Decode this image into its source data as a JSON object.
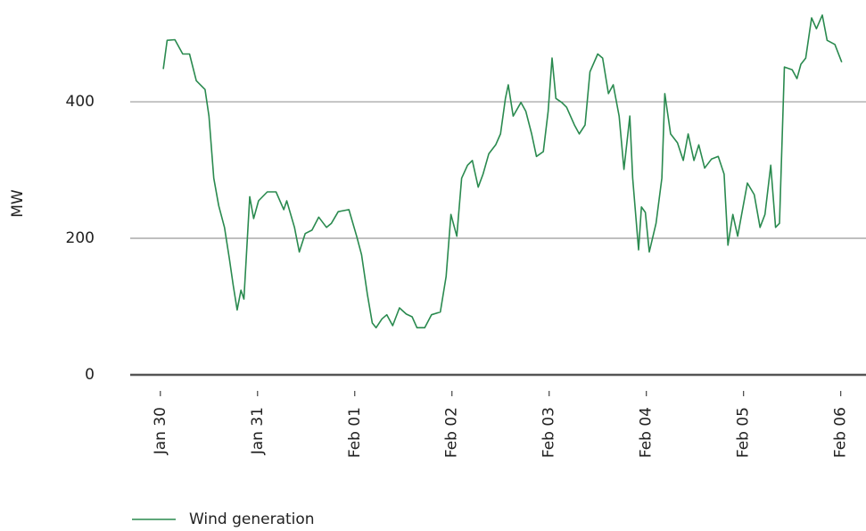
{
  "chart_data": {
    "type": "line",
    "y_label": "MW",
    "x": [
      0.03,
      0.07,
      0.15,
      0.23,
      0.3,
      0.37,
      0.46,
      0.5,
      0.55,
      0.6,
      0.66,
      0.71,
      0.75,
      0.79,
      0.83,
      0.86,
      0.92,
      0.96,
      1.01,
      1.1,
      1.19,
      1.27,
      1.3,
      1.38,
      1.43,
      1.49,
      1.56,
      1.63,
      1.71,
      1.76,
      1.83,
      1.94,
      2.02,
      2.07,
      2.13,
      2.18,
      2.22,
      2.28,
      2.33,
      2.39,
      2.46,
      2.53,
      2.59,
      2.64,
      2.72,
      2.79,
      2.88,
      2.94,
      2.99,
      3.05,
      3.1,
      3.16,
      3.21,
      3.27,
      3.32,
      3.38,
      3.45,
      3.5,
      3.55,
      3.58,
      3.63,
      3.71,
      3.76,
      3.82,
      3.87,
      3.94,
      3.99,
      4.03,
      4.07,
      4.13,
      4.18,
      4.26,
      4.31,
      4.37,
      4.42,
      4.5,
      4.55,
      4.61,
      4.66,
      4.72,
      4.77,
      4.83,
      4.86,
      4.92,
      4.95,
      4.99,
      5.03,
      5.1,
      5.16,
      5.19,
      5.25,
      5.32,
      5.38,
      5.43,
      5.49,
      5.54,
      5.6,
      5.67,
      5.74,
      5.8,
      5.84,
      5.89,
      5.94,
      6.04,
      6.11,
      6.17,
      6.22,
      6.28,
      6.33,
      6.37,
      6.42,
      6.5,
      6.55,
      6.59,
      6.64,
      6.7,
      6.75,
      6.81,
      6.86,
      6.94,
      7.01
    ],
    "series": [
      {
        "name": "Wind generation",
        "color": "#2a8a4f",
        "values": [
          448,
          490,
          491,
          470,
          470,
          431,
          418,
          379,
          288,
          248,
          216,
          170,
          131,
          95,
          124,
          111,
          261,
          229,
          255,
          268,
          268,
          242,
          255,
          216,
          180,
          207,
          212,
          231,
          216,
          222,
          239,
          242,
          203,
          176,
          118,
          76,
          69,
          82,
          88,
          72,
          98,
          89,
          85,
          69,
          69,
          88,
          92,
          144,
          235,
          203,
          288,
          307,
          314,
          275,
          294,
          324,
          337,
          353,
          405,
          425,
          379,
          399,
          386,
          353,
          320,
          327,
          386,
          464,
          405,
          399,
          392,
          366,
          353,
          366,
          444,
          470,
          464,
          412,
          425,
          379,
          301,
          379,
          288,
          183,
          246,
          238,
          180,
          222,
          288,
          412,
          353,
          340,
          314,
          353,
          314,
          337,
          303,
          316,
          320,
          294,
          190,
          235,
          203,
          281,
          264,
          216,
          235,
          307,
          216,
          222,
          451,
          447,
          434,
          455,
          464,
          523,
          507,
          527,
          490,
          484,
          458
        ]
      }
    ],
    "xlim": [
      -0.31,
      7.26
    ],
    "xticks": [
      {
        "value": 0,
        "label": "Jan 30"
      },
      {
        "value": 1,
        "label": "Jan 31"
      },
      {
        "value": 2,
        "label": "Feb 01"
      },
      {
        "value": 3,
        "label": "Feb 02"
      },
      {
        "value": 4,
        "label": "Feb 03"
      },
      {
        "value": 5,
        "label": "Feb 04"
      },
      {
        "value": 6,
        "label": "Feb 05"
      },
      {
        "value": 7,
        "label": "Feb 06"
      }
    ],
    "ylim": [
      0,
      540
    ],
    "yticks": [
      0,
      200,
      400
    ],
    "grid": true
  }
}
